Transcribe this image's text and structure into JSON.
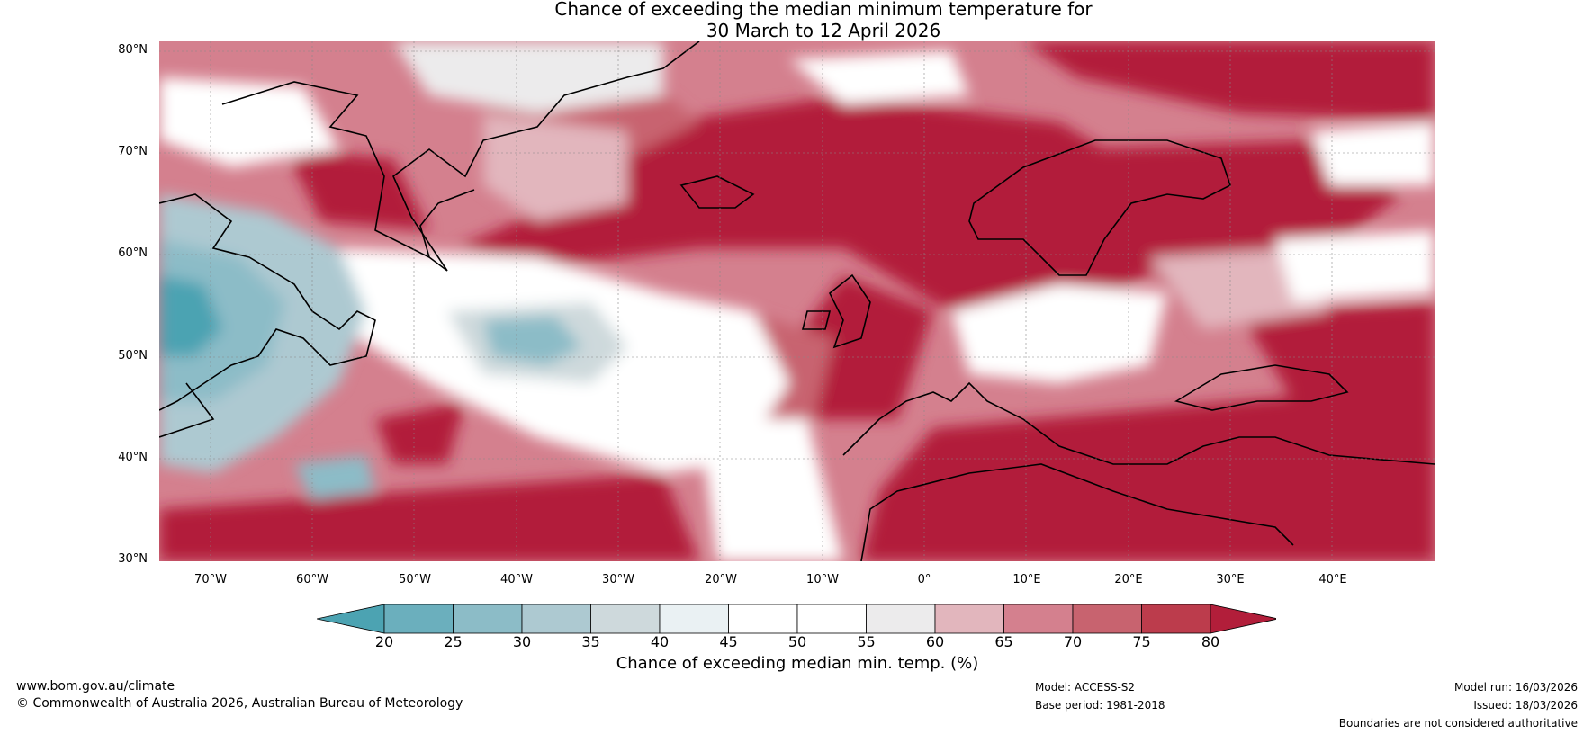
{
  "title": {
    "line1": "Chance of exceeding the median minimum temperature for",
    "line2": "30 March to 12 April 2026"
  },
  "map": {
    "lat_ticks": [
      "80°N",
      "70°N",
      "60°N",
      "50°N",
      "40°N",
      "30°N"
    ],
    "lon_ticks": [
      "70°W",
      "60°W",
      "50°W",
      "40°W",
      "30°W",
      "20°W",
      "10°W",
      "0°",
      "10°E",
      "20°E",
      "30°E",
      "40°E"
    ],
    "extent": {
      "lon_min": -75,
      "lon_max": 50,
      "lat_min": 30,
      "lat_max": 81
    }
  },
  "colorbar": {
    "label": "Chance of exceeding median min. temp. (%)",
    "ticks": [
      "20",
      "25",
      "30",
      "35",
      "40",
      "45",
      "50",
      "55",
      "60",
      "65",
      "70",
      "75",
      "80"
    ],
    "colors": [
      "#4ca3b2",
      "#6bafbd",
      "#8cbcc7",
      "#adc9d1",
      "#ced9dc",
      "#eaf1f3",
      "#ffffff",
      "#ffffff",
      "#ecebec",
      "#e2b6bd",
      "#d4808e",
      "#c8636f",
      "#bc3c4c",
      "#b21e3a"
    ]
  },
  "footer": {
    "url": "www.bom.gov.au/climate",
    "copyright": "© Commonwealth of Australia 2026, Australian Bureau of Meteorology",
    "model": "Model: ACCESS-S2",
    "base_period": "Base period: 1981-2018",
    "model_run": "Model run: 16/03/2026",
    "issued": "Issued: 18/03/2026",
    "disclaimer": "Boundaries are not considered authoritative"
  }
}
